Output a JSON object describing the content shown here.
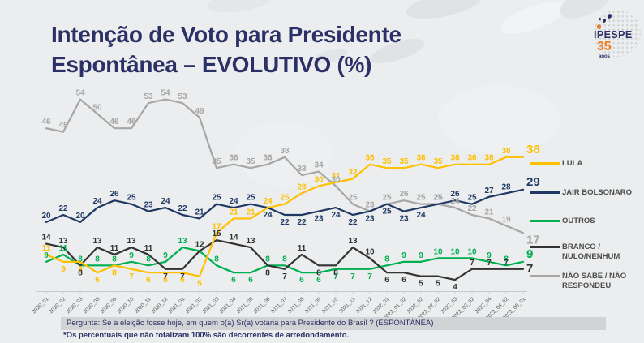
{
  "title": {
    "line1": "Intenção de Voto para Presidente",
    "line2": "Espontânea – EVOLUTIVO (%)"
  },
  "logo": {
    "name": "IPESPE",
    "number": "35",
    "caption": "anos"
  },
  "chart_data": {
    "type": "line",
    "categories": [
      "2020_01",
      "2020_02",
      "2020_03",
      "2020_08",
      "2020_09",
      "2020_10",
      "2020_11",
      "2020_12",
      "2021_01",
      "2021_02",
      "2021_03",
      "2021_04",
      "2021_05",
      "2021_06",
      "2021_07",
      "2021_08",
      "2021_09",
      "2021_10",
      "2021_11",
      "2021_12",
      "2022_01",
      "2022_01_02",
      "2022_02",
      "2022_02_02",
      "2022_03",
      "2022_03_02",
      "2022_04",
      "2022_04_02",
      "2022_05_01"
    ],
    "series": [
      {
        "name": "LULA",
        "color": "#FFC000",
        "values": [
          11,
          9,
          9,
          6,
          8,
          7,
          6,
          6,
          6,
          5,
          17,
          21,
          21,
          24,
          25,
          28,
          30,
          31,
          32,
          36,
          35,
          35,
          36,
          35,
          36,
          36,
          36,
          38,
          38
        ]
      },
      {
        "name": "JAIR BOLSONARO",
        "color": "#1F3864",
        "values": [
          20,
          22,
          20,
          24,
          26,
          25,
          23,
          24,
          22,
          21,
          25,
          24,
          25,
          24,
          22,
          22,
          23,
          24,
          22,
          23,
          25,
          23,
          24,
          25,
          26,
          25,
          27,
          28,
          29
        ]
      },
      {
        "name": "OUTROS",
        "color": "#00B050",
        "values": [
          9,
          11,
          8,
          8,
          8,
          9,
          8,
          9,
          13,
          12,
          8,
          6,
          6,
          8,
          8,
          6,
          6,
          7,
          7,
          7,
          8,
          9,
          9,
          10,
          10,
          10,
          9,
          8,
          9
        ]
      },
      {
        "name": "BRANCO / NULO/NENHUM",
        "color": "#333333",
        "values": [
          14,
          13,
          8,
          13,
          11,
          13,
          11,
          7,
          7,
          12,
          15,
          14,
          13,
          8,
          7,
          11,
          8,
          8,
          13,
          10,
          6,
          6,
          5,
          5,
          4,
          7,
          7,
          7,
          7
        ]
      },
      {
        "name": "NÃO SABE / NÃO RESPONDEU",
        "color": "#A6A6A6",
        "values": [
          46,
          45,
          54,
          50,
          46,
          46,
          53,
          54,
          53,
          49,
          35,
          36,
          35,
          36,
          38,
          33,
          34,
          30,
          25,
          23,
          25,
          26,
          25,
          25,
          24,
          22,
          21,
          19,
          17
        ]
      }
    ],
    "ylim": [
      0,
      58
    ],
    "grid": false,
    "legend_position": "right",
    "data_labels": true
  },
  "legend": {
    "items": [
      {
        "label": "LULA",
        "color": "#FFC000"
      },
      {
        "label": "JAIR BOLSONARO",
        "color": "#1F3864"
      },
      {
        "label": "OUTROS",
        "color": "#00B050"
      },
      {
        "label": "BRANCO /\nNULO/NENHUM",
        "color": "#333333"
      },
      {
        "label": "NÃO SABE / NÃO\nRESPONDEU",
        "color": "#A6A6A6"
      }
    ]
  },
  "footer": {
    "question": "Pergunta:  Se a eleição fosse hoje, em quem o(a) Sr(a) votaria para  Presidente do Brasil ? (ESPONTÂNEA)",
    "note": "*Os percentuais que não totalizam 100% são decorrentes de arredondamento."
  }
}
